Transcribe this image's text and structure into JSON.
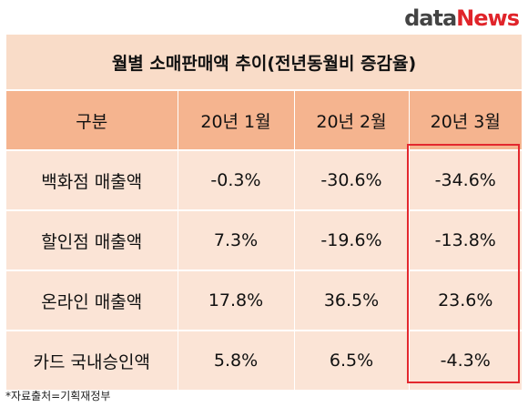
{
  "logo": {
    "part1": "data",
    "part2": "News"
  },
  "table": {
    "title": "월별 소매판매액 추이(전년동월비 증감율)",
    "headers": [
      "구분",
      "20년 1월",
      "20년 2월",
      "20년 3월"
    ],
    "rows": [
      [
        "백화점 매출액",
        "-0.3%",
        "-30.6%",
        "-34.6%"
      ],
      [
        "할인점 매출액",
        "7.3%",
        "-19.6%",
        "-13.8%"
      ],
      [
        "온라인 매출액",
        "17.8%",
        "36.5%",
        "23.6%"
      ],
      [
        "카드 국내승인액",
        "5.8%",
        "6.5%",
        "-4.3%"
      ]
    ]
  },
  "source": "*자료출처=기획재정부",
  "colors": {
    "title_bg": "#f9dcc8",
    "header_bg": "#f5b48f",
    "cell_bg": "#fbe4d6",
    "highlight_border": "#e3282e",
    "logo_accent": "#e0242a"
  }
}
